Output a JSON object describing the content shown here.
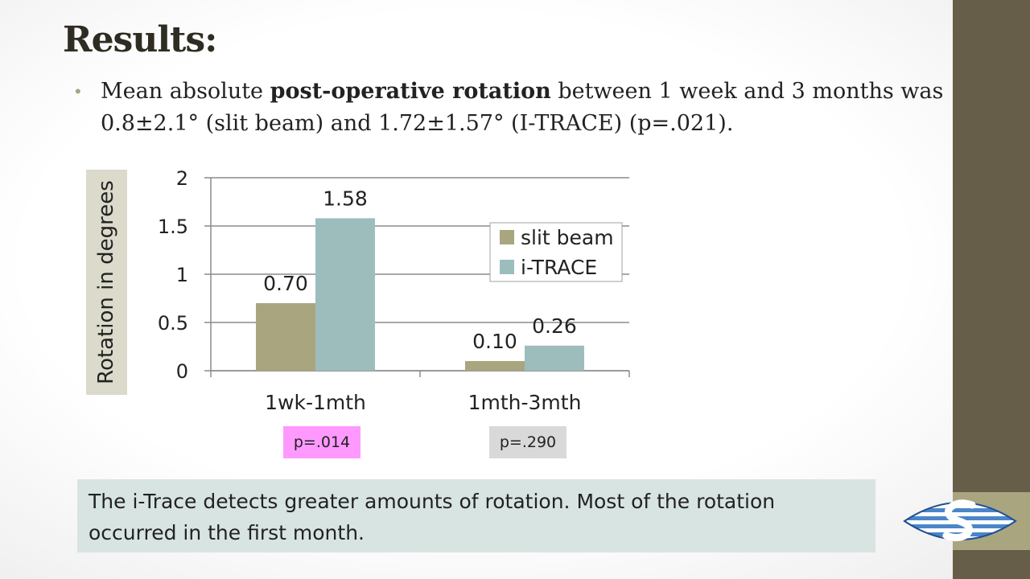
{
  "slide": {
    "title": "Results:",
    "bullet": {
      "part1": "Mean absolute ",
      "bold": "post-operative rotation",
      "part2": " between 1 week and 3 months was 0.8±2.1° (slit beam) and 1.72±1.57° (I-TRACE) (p=.021)."
    },
    "conclusion": "The i-Trace detects greater amounts of rotation. Most of the rotation occurred in the first month.",
    "p_values": [
      "p=.014",
      "p=.290"
    ]
  },
  "colors": {
    "sidebar": "#665e49",
    "stripe": "#a9a57f",
    "series1": "#a9a57f",
    "series2": "#9dbdbd",
    "highlight_p": "#ff99ff",
    "neutral_p": "#d9d9d9",
    "conclusion_bg": "#d8e4e1"
  },
  "chart_data": {
    "type": "bar",
    "categories": [
      "1wk-1mth",
      "1mth-3mth"
    ],
    "series": [
      {
        "name": "slit beam",
        "values": [
          0.7,
          0.1
        ],
        "labels": [
          "0.70",
          "0.10"
        ]
      },
      {
        "name": "i-TRACE",
        "values": [
          1.58,
          0.26
        ],
        "labels": [
          "1.58",
          "0.26"
        ]
      }
    ],
    "title": "",
    "xlabel": "",
    "ylabel": "Rotation in degrees",
    "ylim": [
      0,
      2
    ],
    "yticks": [
      0,
      0.5,
      1,
      1.5,
      2
    ],
    "ytick_labels": [
      "0",
      "0.5",
      "1",
      "1.5",
      "2"
    ],
    "grid": true,
    "legend": "right"
  }
}
